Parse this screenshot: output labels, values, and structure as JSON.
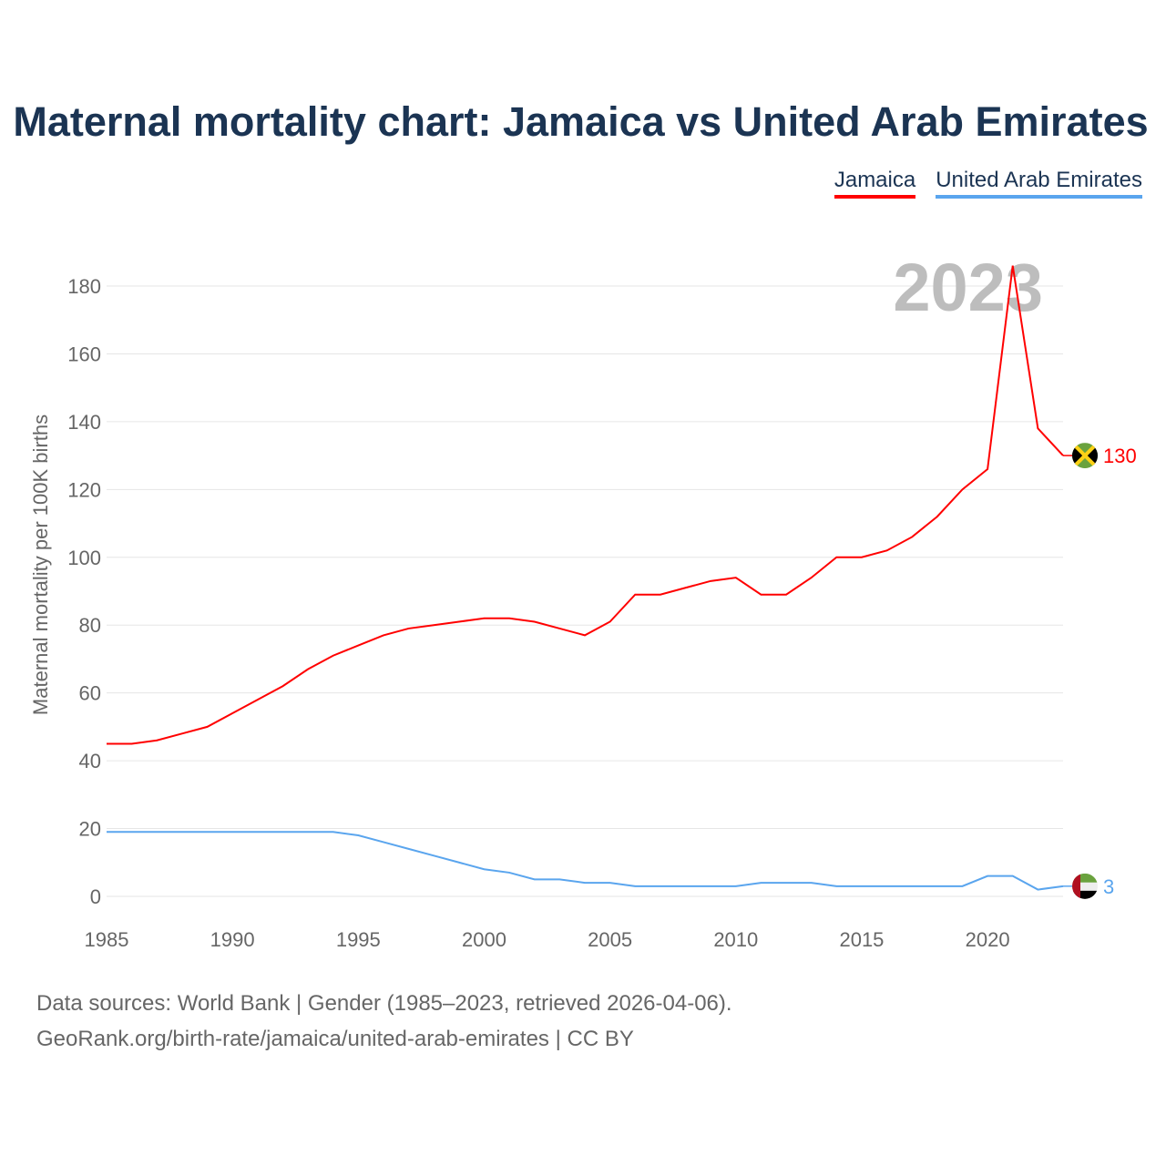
{
  "chart_data": {
    "type": "line",
    "title": "Maternal mortality chart: Jamaica vs United Arab Emirates",
    "ylabel": "Maternal mortality per 100K births",
    "xlabel": "",
    "year_label": "2023",
    "x": [
      1985,
      1986,
      1987,
      1988,
      1989,
      1990,
      1991,
      1992,
      1993,
      1994,
      1995,
      1996,
      1997,
      1998,
      1999,
      2000,
      2001,
      2002,
      2003,
      2004,
      2005,
      2006,
      2007,
      2008,
      2009,
      2010,
      2011,
      2012,
      2013,
      2014,
      2015,
      2016,
      2017,
      2018,
      2019,
      2020,
      2021,
      2022,
      2023
    ],
    "series": [
      {
        "name": "Jamaica",
        "color": "#ff0000",
        "end_label": "130",
        "values": [
          45,
          45,
          46,
          48,
          50,
          54,
          58,
          62,
          67,
          71,
          74,
          77,
          79,
          80,
          81,
          82,
          82,
          81,
          79,
          77,
          81,
          89,
          89,
          91,
          93,
          94,
          89,
          89,
          94,
          100,
          100,
          102,
          106,
          112,
          120,
          126,
          186,
          138,
          130
        ]
      },
      {
        "name": "United Arab Emirates",
        "color": "#5aa5ee",
        "end_label": "3",
        "values": [
          19,
          19,
          19,
          19,
          19,
          19,
          19,
          19,
          19,
          19,
          18,
          16,
          14,
          12,
          10,
          8,
          7,
          5,
          5,
          4,
          4,
          3,
          3,
          3,
          3,
          3,
          4,
          4,
          4,
          3,
          3,
          3,
          3,
          3,
          3,
          6,
          6,
          2,
          3
        ]
      }
    ],
    "xlim": [
      1985,
      2023
    ],
    "ylim": [
      0,
      180
    ],
    "xticks": [
      "1985",
      "1990",
      "1995",
      "2000",
      "2005",
      "2010",
      "2015",
      "2020"
    ],
    "yticks": [
      "0",
      "20",
      "40",
      "60",
      "80",
      "100",
      "120",
      "140",
      "160",
      "180"
    ],
    "grid": true,
    "legend_position": "top-right"
  },
  "footer": {
    "line1": "Data sources: World Bank | Gender (1985–2023, retrieved 2026-04-06).",
    "line2": "GeoRank.org/birth-rate/jamaica/united-arab-emirates | CC BY"
  }
}
